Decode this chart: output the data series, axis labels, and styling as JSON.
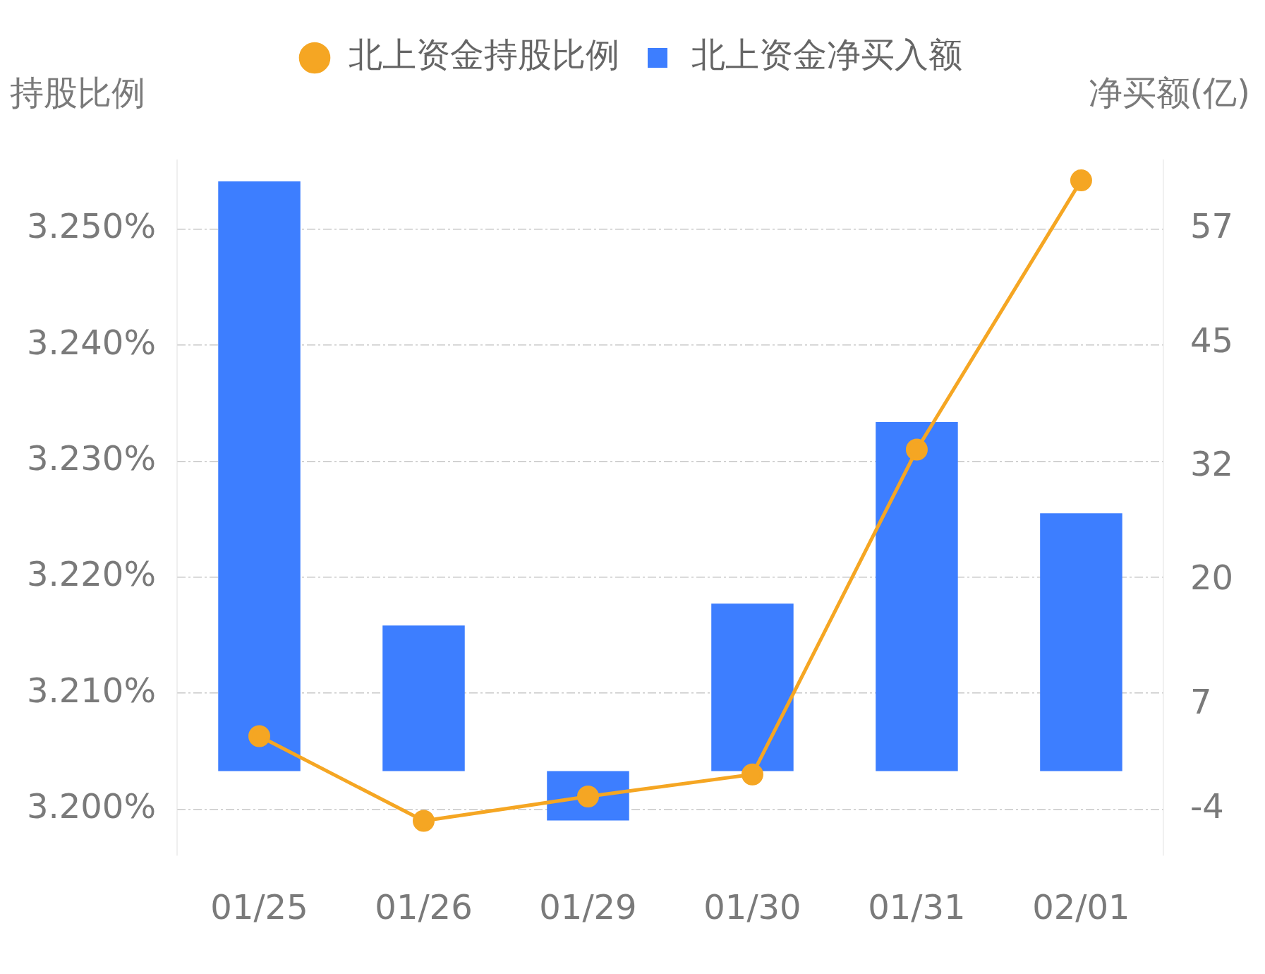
{
  "chart_data": {
    "type": "bar",
    "categories": [
      "01/25",
      "01/26",
      "01/29",
      "01/30",
      "01/31",
      "02/01"
    ],
    "ylabel": "持股比例",
    "y2label": "净买额(亿)",
    "series": [
      {
        "name": "北上资金持股比例",
        "type": "line",
        "color": "#f5a623",
        "marker": "circle",
        "values": [
          3.2063,
          3.199,
          3.2011,
          3.203,
          3.231,
          3.2542
        ]
      },
      {
        "name": "北上资金净买入额",
        "axis": "y2",
        "color": "#3d7eff",
        "values": [
          62.0,
          15.3,
          -5.2,
          17.6,
          36.7,
          27.1
        ]
      }
    ],
    "ylim": [
      3.196,
      3.256
    ],
    "yticks": [
      {
        "value": 3.2,
        "label": "3.200%"
      },
      {
        "value": 3.21,
        "label": "3.210%"
      },
      {
        "value": 3.22,
        "label": "3.220%"
      },
      {
        "value": 3.23,
        "label": "3.230%"
      },
      {
        "value": 3.24,
        "label": "3.240%"
      },
      {
        "value": 3.25,
        "label": "3.250%"
      }
    ],
    "y2lim": [
      -8.9,
      64.3
    ],
    "y2ticks": [
      -4,
      7,
      20,
      32,
      45,
      57
    ],
    "grid": "y",
    "legend": "top"
  }
}
